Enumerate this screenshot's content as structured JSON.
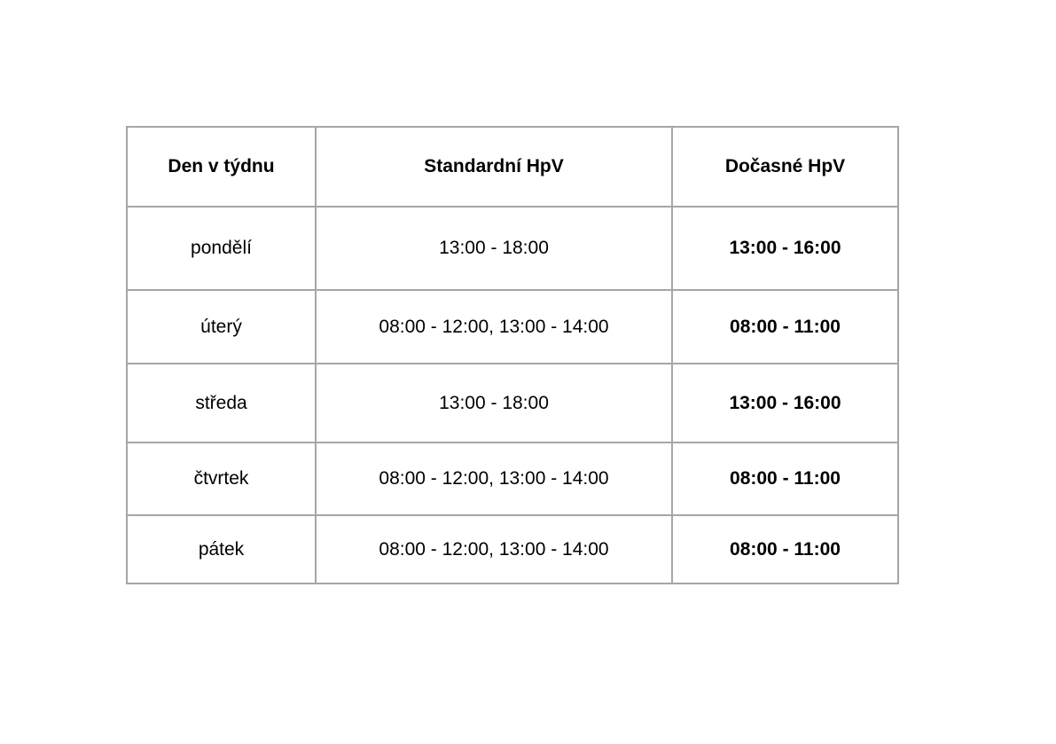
{
  "table": {
    "border_color": "#a6a6a6",
    "text_color": "#000000",
    "headers": [
      "Den v týdnu",
      "Standardní HpV",
      "Dočasné HpV"
    ],
    "rows": [
      {
        "day": "pondělí",
        "standard": "13:00 - 18:00",
        "temporary": "13:00 - 16:00"
      },
      {
        "day": "úterý",
        "standard": "08:00 - 12:00, 13:00 - 14:00",
        "temporary": "08:00 - 11:00"
      },
      {
        "day": "středa",
        "standard": "13:00 - 18:00",
        "temporary": "13:00 - 16:00"
      },
      {
        "day": "čtvrtek",
        "standard": "08:00 - 12:00, 13:00 - 14:00",
        "temporary": "08:00 - 11:00"
      },
      {
        "day": "pátek",
        "standard": "08:00 - 12:00, 13:00 - 14:00",
        "temporary": "08:00 - 11:00"
      }
    ]
  }
}
